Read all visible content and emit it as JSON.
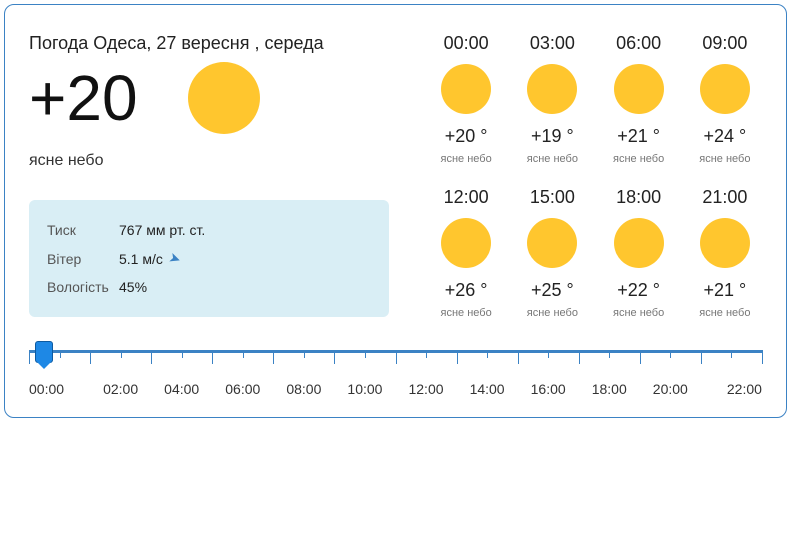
{
  "heading": "Погода Одеса, 27 вересня , середа",
  "current": {
    "temp": "+20",
    "desc": "ясне небо",
    "sun_color": "#ffc62e"
  },
  "details": {
    "pressure_label": "Тиск",
    "pressure_value": "767 мм рт. ст.",
    "wind_label": "Вітер",
    "wind_value": "5.1 м/с",
    "humidity_label": "Вологість",
    "humidity_value": "45%"
  },
  "hours": [
    {
      "time": "00:00",
      "temp": "+20 °",
      "desc": "ясне небо"
    },
    {
      "time": "03:00",
      "temp": "+19 °",
      "desc": "ясне небо"
    },
    {
      "time": "06:00",
      "temp": "+21 °",
      "desc": "ясне небо"
    },
    {
      "time": "09:00",
      "temp": "+24 °",
      "desc": "ясне небо"
    },
    {
      "time": "12:00",
      "temp": "+26 °",
      "desc": "ясне небо"
    },
    {
      "time": "15:00",
      "temp": "+25 °",
      "desc": "ясне небо"
    },
    {
      "time": "18:00",
      "temp": "+22 °",
      "desc": "ясне небо"
    },
    {
      "time": "21:00",
      "temp": "+21 °",
      "desc": "ясне небо"
    }
  ],
  "timeline": {
    "labels": [
      "00:00",
      "02:00",
      "04:00",
      "06:00",
      "08:00",
      "10:00",
      "12:00",
      "14:00",
      "16:00",
      "18:00",
      "20:00",
      "22:00"
    ],
    "handle_pos_pct": 2,
    "track_color": "#3b82c4",
    "handle_color": "#1e88e5"
  },
  "colors": {
    "border": "#3b82c4",
    "sun": "#ffc62e",
    "details_bg": "#d9eef5"
  }
}
